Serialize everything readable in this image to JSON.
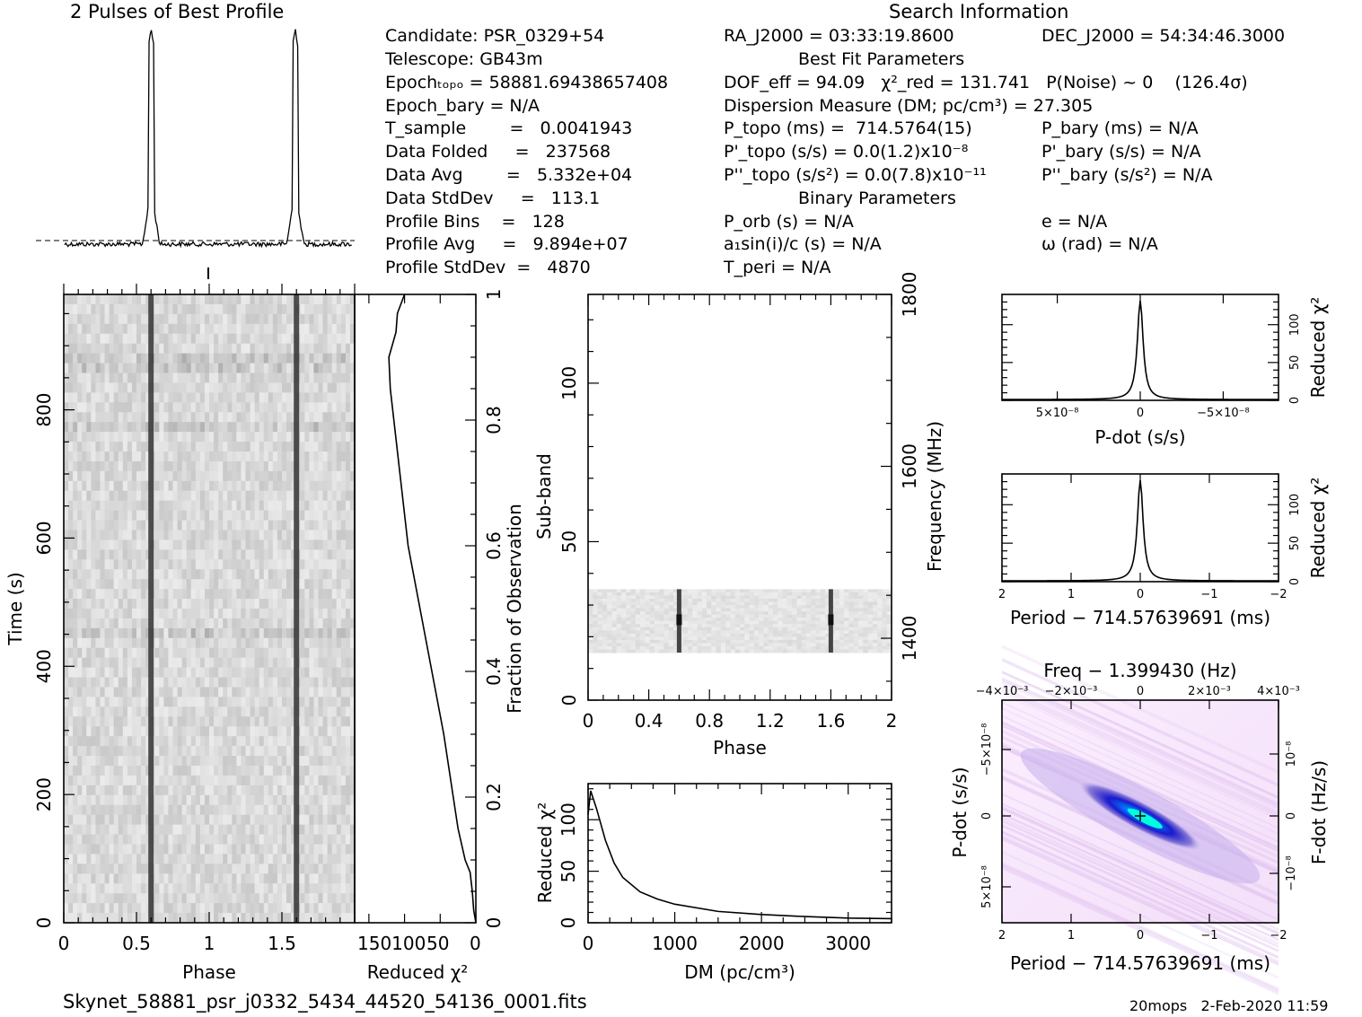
{
  "header": {
    "left_title": "2 Pulses of Best Profile",
    "search_title": "Search Information",
    "best_fit_title": "Best Fit Parameters",
    "binary_title": "Binary Parameters"
  },
  "info": {
    "candidate": "Candidate:   PSR_0329+54",
    "telescope": "Telescope:   GB43m",
    "epoch_topo": "Epochₜₒₚₒ = 58881.69438657408",
    "epoch_bary": "Epoch_bary = N/A",
    "t_sample": "T_sample        =   0.0041943",
    "data_folded": "Data Folded     =   237568",
    "data_avg": "Data Avg        =   5.332e+04",
    "data_stddev": "Data StdDev     =   113.1",
    "profile_bins": "Profile Bins    =   128",
    "profile_avg": "Profile Avg     =   9.894e+07",
    "profile_stddev": "Profile StdDev  =   4870",
    "ra": "RA_J2000 = 03:33:19.8600",
    "dec": "DEC_J2000 = 54:34:46.3000",
    "dof": "DOF_eff = 94.09   χ²_red = 131.741   P(Noise) ~ 0    (126.4σ)",
    "dm": "Dispersion Measure (DM; pc/cm³) = 27.305",
    "p_topo": "P_topo (ms) =  714.5764(15)",
    "pd_topo": "P'_topo (s/s) = 0.0(1.2)x10⁻⁸",
    "pdd_topo": "P''_topo (s/s²) = 0.0(7.8)x10⁻¹¹",
    "p_bary": "P_bary (ms) = N/A",
    "pd_bary": "P'_bary (s/s) = N/A",
    "pdd_bary": "P''_bary (s/s²) = N/A",
    "p_orb": "P_orb (s) = N/A",
    "a1sini": "a₁sin(i)/c (s) = N/A",
    "t_peri": "T_peri = N/A",
    "ecc": "e = N/A",
    "omega": "ω (rad) = N/A"
  },
  "footer": {
    "filename": "Skynet_58881_psr_j0332_5434_44520_54136_0001.fits",
    "stamp": "20mops   2-Feb-2020 11:59"
  },
  "colors": {
    "greyscale_dark": "#222222",
    "heat_blue": "#1a1aff",
    "heat_cyan": "#00ffff",
    "heat_pink": "#f0d8f8"
  },
  "chart_data": [
    {
      "id": "profile",
      "type": "line",
      "title": "2 Pulses of Best Profile",
      "x_range": [
        0,
        2
      ],
      "peaks_phase": [
        0.6,
        1.6
      ]
    },
    {
      "id": "time_phase",
      "type": "heatmap",
      "xlabel": "Phase",
      "ylabel": "Time (s)",
      "xlim": [
        0,
        2
      ],
      "ylim": [
        0,
        980
      ],
      "xticks": [
        "0",
        "0.5",
        "1",
        "1.5"
      ],
      "yticks": [
        "0",
        "200",
        "400",
        "600",
        "800"
      ],
      "pulse_phases": [
        0.6,
        1.6
      ]
    },
    {
      "id": "chi_vs_time",
      "type": "line",
      "xlabel": "Reduced χ²",
      "ylabel": "Fraction of Observation",
      "xticks": [
        "150",
        "100",
        "50",
        "0"
      ],
      "yticks": [
        "0",
        "0.2",
        "0.4",
        "0.6",
        "0.8",
        "1"
      ],
      "points": [
        [
          0,
          0
        ],
        [
          3,
          0.02
        ],
        [
          5,
          0.05
        ],
        [
          8,
          0.08
        ],
        [
          15,
          0.1
        ],
        [
          25,
          0.15
        ],
        [
          45,
          0.3
        ],
        [
          70,
          0.45
        ],
        [
          95,
          0.6
        ],
        [
          110,
          0.75
        ],
        [
          120,
          0.85
        ],
        [
          122,
          0.9
        ],
        [
          112,
          0.94
        ],
        [
          110,
          0.97
        ],
        [
          100,
          1.0
        ]
      ]
    },
    {
      "id": "subband_phase",
      "type": "heatmap",
      "xlabel": "Phase",
      "ylabel": "Sub-band",
      "y2label": "Frequency (MHz)",
      "xlim": [
        0,
        2
      ],
      "ylim": [
        0,
        128
      ],
      "xticks": [
        "0",
        "0.4",
        "0.8",
        "1.2",
        "1.6",
        "2"
      ],
      "yticks": [
        "0",
        "50",
        "100"
      ],
      "y2ticks": [
        "1400",
        "1600",
        "1800"
      ],
      "data_band": [
        15,
        35
      ],
      "pulse_phases": [
        0.6,
        1.6
      ]
    },
    {
      "id": "chi_vs_dm",
      "type": "line",
      "xlabel": "DM (pc/cm³)",
      "ylabel": "Reduced χ²",
      "xlim": [
        0,
        3500
      ],
      "ylim": [
        0,
        135
      ],
      "xticks": [
        "0",
        "1000",
        "2000",
        "3000"
      ],
      "yticks": [
        "0",
        "50",
        "100"
      ],
      "points": [
        [
          0,
          105
        ],
        [
          30,
          128
        ],
        [
          100,
          110
        ],
        [
          200,
          80
        ],
        [
          300,
          58
        ],
        [
          400,
          44
        ],
        [
          600,
          30
        ],
        [
          800,
          23
        ],
        [
          1000,
          18
        ],
        [
          1500,
          11
        ],
        [
          2000,
          8
        ],
        [
          2500,
          6
        ],
        [
          3000,
          4.5
        ],
        [
          3500,
          4
        ]
      ]
    },
    {
      "id": "chi_vs_pdot",
      "type": "line",
      "xlabel": "P-dot (s/s)",
      "ylabel": "Reduced χ²",
      "xticks": [
        "5×10⁻⁸",
        "0",
        "−5×10⁻⁸"
      ],
      "yticks": [
        "0",
        "50",
        "100"
      ],
      "xlim": [
        8e-08,
        -8e-08
      ],
      "ylim": [
        0,
        140
      ],
      "peak": 131.7
    },
    {
      "id": "chi_vs_period",
      "type": "line",
      "xlabel": "Period − 714.57639691 (ms)",
      "ylabel": "Reduced χ²",
      "xticks": [
        "2",
        "1",
        "0",
        "−1",
        "−2"
      ],
      "yticks": [
        "0",
        "50",
        "100"
      ],
      "xlim": [
        2,
        -2
      ],
      "ylim": [
        0,
        140
      ],
      "peak": 131.7
    },
    {
      "id": "ppdot_plane",
      "type": "heatmap",
      "title": "Freq − 1.399430 (Hz)",
      "xlabel": "Period − 714.57639691 (ms)",
      "ylabel": "P-dot (s/s)",
      "y2label": "F-dot (Hz/s)",
      "xticks": [
        "2",
        "1",
        "0",
        "−1",
        "−2"
      ],
      "x2ticks": [
        "−4×10⁻³",
        "−2×10⁻³",
        "0",
        "2×10⁻³",
        "4×10⁻³"
      ],
      "yticks": [
        "−5×10⁻⁸",
        "0",
        "5×10⁻⁸"
      ],
      "y2ticks": [
        "10⁻⁸",
        "0",
        "−10⁻⁸"
      ]
    }
  ]
}
